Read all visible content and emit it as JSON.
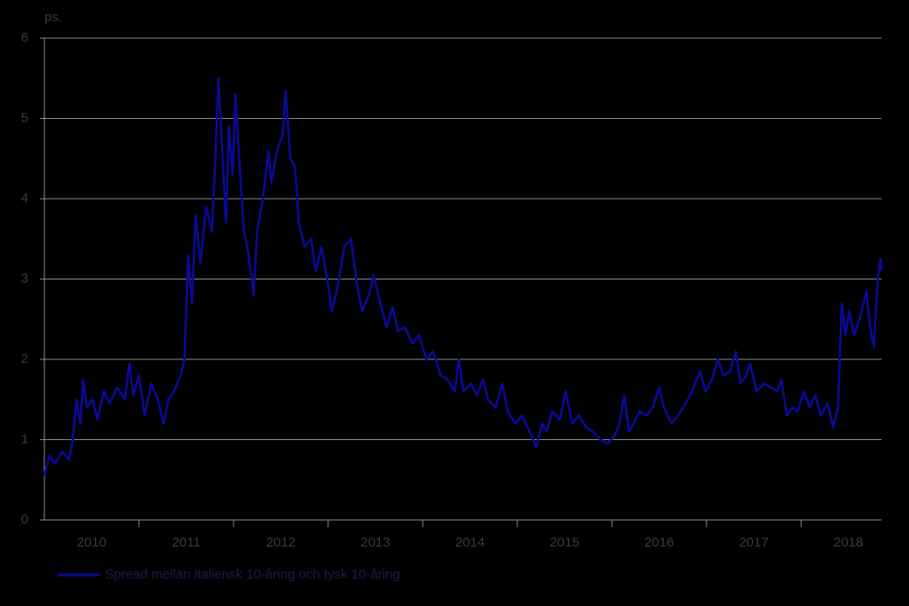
{
  "chart_data": {
    "type": "line",
    "y_label": "ps.",
    "x": [
      2010.0,
      2010.05,
      2010.11,
      2010.19,
      2010.26,
      2010.3,
      2010.34,
      2010.38,
      2010.41,
      2010.45,
      2010.51,
      2010.56,
      2010.63,
      2010.69,
      2010.77,
      2010.85,
      2010.9,
      2010.94,
      2011.0,
      2011.06,
      2011.13,
      2011.2,
      2011.26,
      2011.31,
      2011.37,
      2011.44,
      2011.48,
      2011.52,
      2011.56,
      2011.6,
      2011.65,
      2011.71,
      2011.77,
      2011.8,
      2011.84,
      2011.88,
      2011.92,
      2011.95,
      2011.99,
      2012.02,
      2012.07,
      2012.11,
      2012.16,
      2012.21,
      2012.25,
      2012.31,
      2012.37,
      2012.4,
      2012.46,
      2012.52,
      2012.55,
      2012.6,
      2012.65,
      2012.69,
      2012.75,
      2012.82,
      2012.87,
      2012.93,
      2012.99,
      2013.04,
      2013.1,
      2013.17,
      2013.24,
      2013.31,
      2013.36,
      2013.43,
      2013.48,
      2013.55,
      2013.62,
      2013.68,
      2013.74,
      2013.81,
      2013.89,
      2013.96,
      2014.04,
      2014.11,
      2014.19,
      2014.26,
      2014.34,
      2014.38,
      2014.43,
      2014.51,
      2014.57,
      2014.64,
      2014.69,
      2014.77,
      2014.84,
      2014.9,
      2014.98,
      2015.05,
      2015.13,
      2015.2,
      2015.26,
      2015.31,
      2015.37,
      2015.45,
      2015.51,
      2015.58,
      2015.65,
      2015.73,
      2015.8,
      2015.88,
      2015.95,
      2016.03,
      2016.08,
      2016.13,
      2016.18,
      2016.23,
      2016.29,
      2016.37,
      2016.43,
      2016.5,
      2016.55,
      2016.63,
      2016.7,
      2016.78,
      2016.85,
      2016.93,
      2016.99,
      2017.06,
      2017.12,
      2017.18,
      2017.25,
      2017.31,
      2017.36,
      2017.42,
      2017.46,
      2017.53,
      2017.61,
      2017.68,
      2017.75,
      2017.79,
      2017.85,
      2017.91,
      2017.96,
      2018.03,
      2018.09,
      2018.15,
      2018.21,
      2018.28,
      2018.34,
      2018.39,
      2018.43,
      2018.47,
      2018.51,
      2018.56,
      2018.62,
      2018.69,
      2018.73,
      2018.77,
      2018.81,
      2018.84,
      2018.85
    ],
    "series": [
      {
        "name": "Spread mellan italiensk 10-åring och tysk 10-åring",
        "color": "#0a0a9a",
        "values": [
          0.55,
          0.8,
          0.7,
          0.85,
          0.75,
          1.0,
          1.5,
          1.2,
          1.75,
          1.4,
          1.5,
          1.25,
          1.6,
          1.45,
          1.65,
          1.5,
          1.95,
          1.55,
          1.8,
          1.3,
          1.7,
          1.5,
          1.2,
          1.5,
          1.6,
          1.8,
          2.0,
          3.3,
          2.7,
          3.8,
          3.2,
          3.9,
          3.6,
          4.3,
          5.5,
          4.6,
          3.7,
          4.9,
          4.3,
          5.3,
          4.3,
          3.6,
          3.3,
          2.8,
          3.6,
          4.0,
          4.6,
          4.2,
          4.6,
          4.8,
          5.35,
          4.5,
          4.4,
          3.7,
          3.4,
          3.5,
          3.1,
          3.4,
          3.0,
          2.6,
          2.9,
          3.4,
          3.5,
          2.9,
          2.6,
          2.8,
          3.05,
          2.7,
          2.4,
          2.65,
          2.35,
          2.4,
          2.2,
          2.3,
          2.0,
          2.1,
          1.8,
          1.75,
          1.6,
          2.0,
          1.6,
          1.7,
          1.55,
          1.75,
          1.5,
          1.4,
          1.7,
          1.35,
          1.2,
          1.3,
          1.1,
          0.9,
          1.2,
          1.1,
          1.35,
          1.25,
          1.6,
          1.2,
          1.3,
          1.15,
          1.1,
          1.0,
          0.95,
          1.05,
          1.2,
          1.55,
          1.1,
          1.2,
          1.35,
          1.3,
          1.4,
          1.65,
          1.4,
          1.2,
          1.3,
          1.45,
          1.6,
          1.85,
          1.6,
          1.75,
          2.0,
          1.8,
          1.85,
          2.1,
          1.7,
          1.8,
          1.95,
          1.6,
          1.7,
          1.65,
          1.6,
          1.75,
          1.3,
          1.4,
          1.35,
          1.6,
          1.4,
          1.55,
          1.3,
          1.45,
          1.15,
          1.4,
          2.7,
          2.3,
          2.6,
          2.3,
          2.5,
          2.85,
          2.4,
          2.15,
          3.0,
          3.25,
          3.1
        ]
      }
    ],
    "xlim": [
      2010,
      2018.85
    ],
    "xticks": [
      {
        "value": 2010.5,
        "label": "2010"
      },
      {
        "value": 2011.5,
        "label": "2011"
      },
      {
        "value": 2012.5,
        "label": "2012"
      },
      {
        "value": 2013.5,
        "label": "2013"
      },
      {
        "value": 2014.5,
        "label": "2014"
      },
      {
        "value": 2015.5,
        "label": "2015"
      },
      {
        "value": 2016.5,
        "label": "2016"
      },
      {
        "value": 2017.5,
        "label": "2017"
      },
      {
        "value": 2018.5,
        "label": "2018"
      }
    ],
    "xminorticks": [
      2011,
      2012,
      2013,
      2014,
      2015,
      2016,
      2017,
      2018
    ],
    "ylim": [
      0,
      6
    ],
    "yticks": [
      0,
      1,
      2,
      3,
      4,
      5,
      6
    ],
    "grid": true
  }
}
